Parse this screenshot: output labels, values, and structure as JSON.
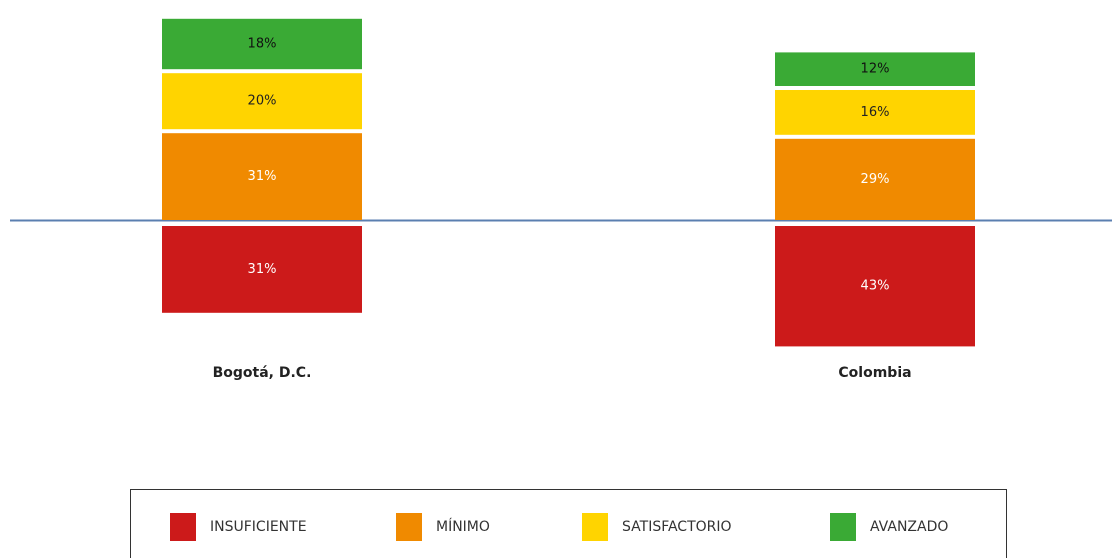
{
  "chart_data": {
    "type": "diverging-stacked-bar",
    "categories": [
      "Bogotá, D.C.",
      "Colombia"
    ],
    "series": [
      {
        "name": "INSUFICIENTE",
        "color": "#cc1a1a",
        "values": [
          31,
          43
        ],
        "value_labels": [
          "31%",
          "43%"
        ]
      },
      {
        "name": "MÍNIMO",
        "color": "#f08a00",
        "values": [
          31,
          29
        ],
        "value_labels": [
          "31%",
          "29%"
        ]
      },
      {
        "name": "SATISFACTORIO",
        "color": "#ffd400",
        "values": [
          20,
          16
        ],
        "value_labels": [
          "20%",
          "16%"
        ]
      },
      {
        "name": "AVANZADO",
        "color": "#3aaa35",
        "values": [
          18,
          12
        ],
        "value_labels": [
          "18%",
          "12%"
        ]
      }
    ]
  }
}
